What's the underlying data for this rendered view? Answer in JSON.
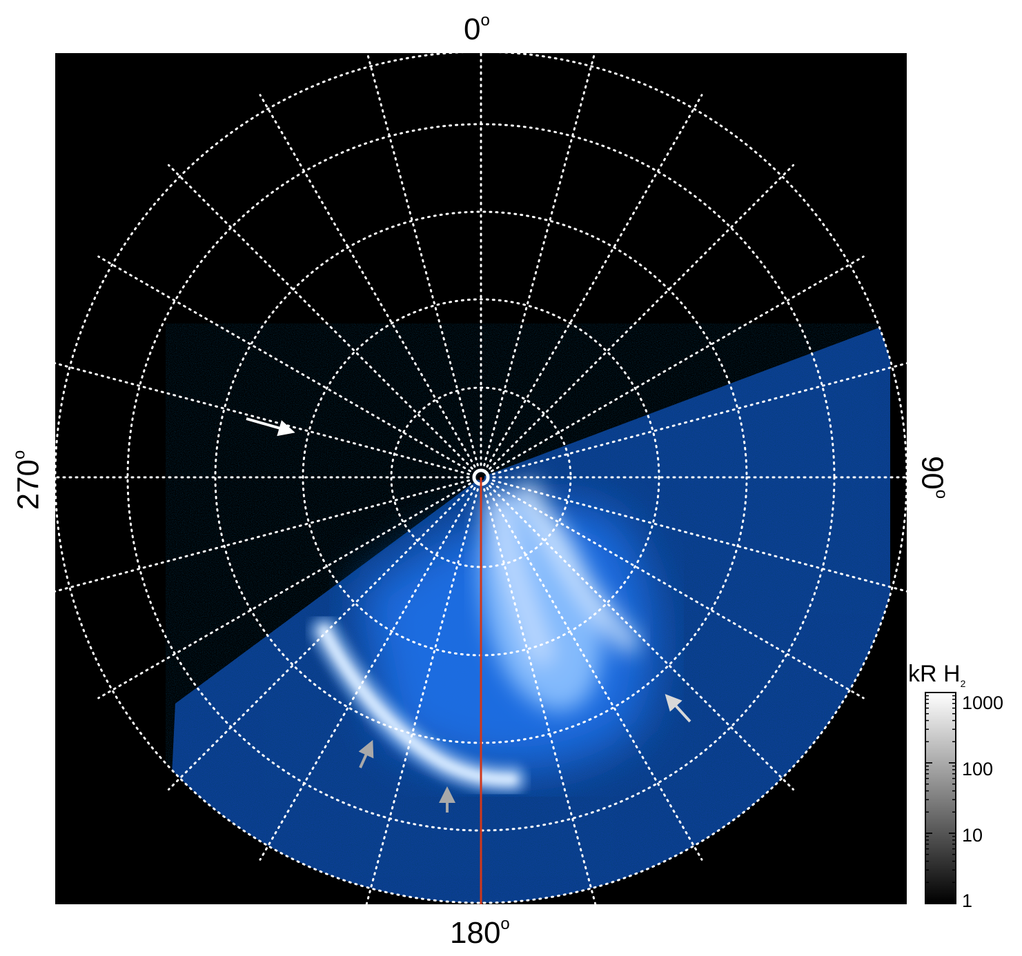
{
  "figure": {
    "angle_labels": {
      "top": "0",
      "right": "90",
      "bottom": "180",
      "left": "270",
      "degree_symbol": "o"
    },
    "colorbar": {
      "title_main": "kR H",
      "title_sub": "2",
      "ticks": [
        "1000",
        "100",
        "10",
        "1"
      ]
    },
    "colors": {
      "background": "#000000",
      "grid": "#ffffff",
      "meridian_line": "#d0381b",
      "aurora_dark": "#0c3f95",
      "aurora_mid": "#1e74ee",
      "aurora_bright": "#8ec2ff",
      "arrow_white": "#ffffff",
      "arrow_gray": "#a9a9a9"
    },
    "annotations": [
      "white-arrow",
      "gray-arrow",
      "gray-arrow",
      "light-gray-arrow"
    ]
  }
}
